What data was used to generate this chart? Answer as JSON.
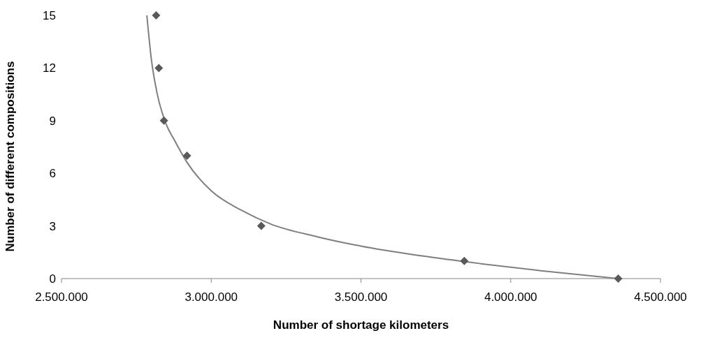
{
  "chart_data": {
    "type": "scatter",
    "xlabel": "Number of shortage kilometers",
    "ylabel": "Number of different compositions",
    "x": [
      2816000,
      2825000,
      2842000,
      2919000,
      3167000,
      3845000,
      4359000
    ],
    "series": [
      {
        "color": "#595959",
        "marker": "diamond",
        "values": [
          15,
          12,
          9,
          7,
          3,
          1,
          0
        ]
      },
      {
        "type": "line",
        "color": "#7f7f7f",
        "marker": "none",
        "x": [
          2785000,
          2800000,
          2820000,
          2845000,
          2880000,
          2920000,
          3000000,
          3100000,
          3200000,
          3350000,
          3500000,
          3700000,
          3900000,
          4100000,
          4359000
        ],
        "values": [
          15,
          12.5,
          10.5,
          9,
          7.8,
          6.6,
          5.0,
          3.9,
          3.1,
          2.4,
          1.85,
          1.3,
          0.85,
          0.45,
          0
        ]
      }
    ],
    "xlim": [
      2500000,
      4500000
    ],
    "xticks": [
      {
        "value": 2500000,
        "label": "2.500.000"
      },
      {
        "value": 3000000,
        "label": "3.000.000"
      },
      {
        "value": 3500000,
        "label": "3.500.000"
      },
      {
        "value": 4000000,
        "label": "4.000.000"
      },
      {
        "value": 4500000,
        "label": "4.500.000"
      }
    ],
    "ylim": [
      0,
      15
    ],
    "yticks": [
      0,
      3,
      6,
      9,
      12,
      15
    ],
    "grid": false
  }
}
